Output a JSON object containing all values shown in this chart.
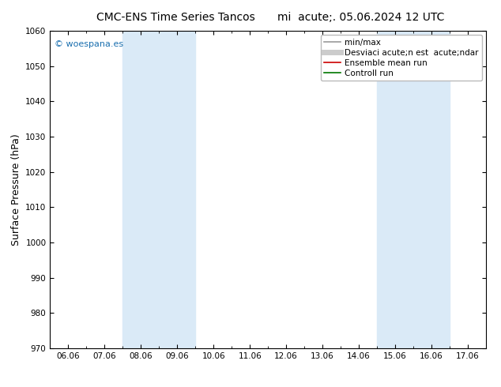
{
  "title_left": "CMC-ENS Time Series Tancos",
  "title_right": "mi  acute;. 05.06.2024 12 UTC",
  "ylabel": "Surface Pressure (hPa)",
  "xlim_dates": [
    "06.06",
    "07.06",
    "08.06",
    "09.06",
    "10.06",
    "11.06",
    "12.06",
    "13.06",
    "14.06",
    "15.06",
    "16.06",
    "17.06"
  ],
  "ylim": [
    970,
    1060
  ],
  "yticks": [
    970,
    980,
    990,
    1000,
    1010,
    1020,
    1030,
    1040,
    1050,
    1060
  ],
  "shaded_regions": [
    {
      "xstart": 2,
      "xend": 4
    },
    {
      "xstart": 9,
      "xend": 11
    }
  ],
  "shaded_color": "#daeaf7",
  "legend_entries": [
    {
      "label": "min/max",
      "color": "#999999",
      "lw": 1.2,
      "style": "-"
    },
    {
      "label": "Desviaci acute;n est  acute;ndar",
      "color": "#cccccc",
      "lw": 5,
      "style": "-"
    },
    {
      "label": "Ensemble mean run",
      "color": "#cc0000",
      "lw": 1.2,
      "style": "-"
    },
    {
      "label": "Controll run",
      "color": "#007700",
      "lw": 1.2,
      "style": "-"
    }
  ],
  "watermark": "© woespana.es",
  "watermark_color": "#1a6faf",
  "bg_color": "#ffffff",
  "plot_bg_color": "#ffffff",
  "border_color": "#000000",
  "title_fontsize": 10,
  "tick_fontsize": 7.5,
  "ylabel_fontsize": 9,
  "legend_fontsize": 7.5
}
